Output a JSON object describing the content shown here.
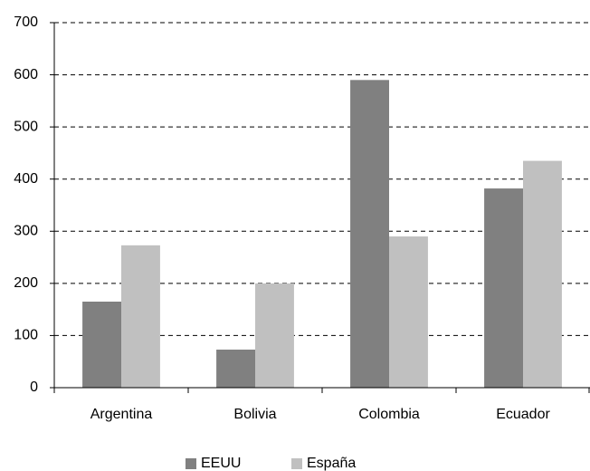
{
  "chart_data": {
    "type": "bar",
    "categories": [
      "Argentina",
      "Bolivia",
      "Colombia",
      "Ecuador"
    ],
    "series": [
      {
        "name": "EEUU",
        "color": "#808080",
        "values": [
          165,
          73,
          590,
          382
        ]
      },
      {
        "name": "España",
        "color": "#c0c0c0",
        "values": [
          273,
          200,
          290,
          435
        ]
      }
    ],
    "ylim": [
      0,
      700
    ],
    "yticks": [
      0,
      100,
      200,
      300,
      400,
      500,
      600,
      700
    ],
    "grid": true,
    "legend": "bottom"
  }
}
